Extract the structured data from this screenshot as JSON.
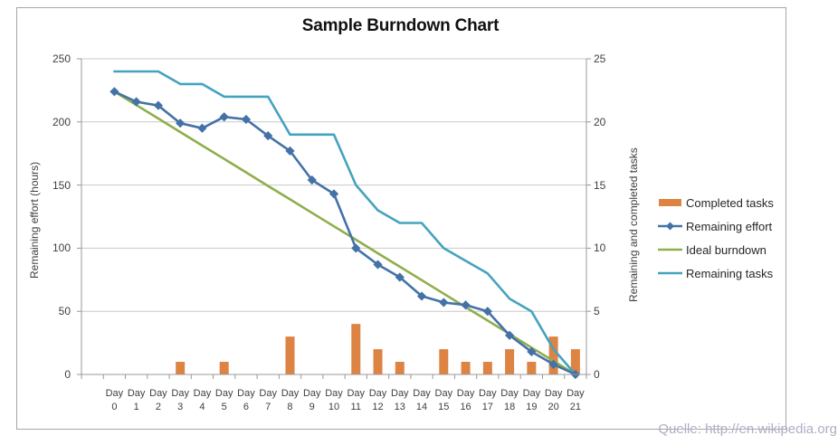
{
  "chart": {
    "title": "Sample Burndown Chart",
    "source_note": "Quelle: http://en.wikipedia.org"
  },
  "chart_data": {
    "type": "combo-bar-line",
    "title": "Sample Burndown Chart",
    "categories": [
      "Day 0",
      "Day 1",
      "Day 2",
      "Day 3",
      "Day 4",
      "Day 5",
      "Day 6",
      "Day 7",
      "Day 8",
      "Day 9",
      "Day 10",
      "Day 11",
      "Day 12",
      "Day 13",
      "Day 14",
      "Day 15",
      "Day 16",
      "Day 17",
      "Day 18",
      "Day 19",
      "Day 20",
      "Day 21"
    ],
    "series": [
      {
        "name": "Completed tasks",
        "type": "bar",
        "axis": "right",
        "color": "#dd8343",
        "values": [
          0,
          0,
          0,
          1,
          0,
          1,
          0,
          0,
          3,
          0,
          0,
          4,
          2,
          1,
          0,
          2,
          1,
          1,
          2,
          1,
          3,
          2
        ]
      },
      {
        "name": "Remaining effort",
        "type": "line",
        "marker": "diamond",
        "axis": "left",
        "color": "#4472a8",
        "values": [
          224,
          216,
          213,
          199,
          195,
          204,
          202,
          189,
          177,
          154,
          143,
          100,
          87,
          77,
          62,
          57,
          55,
          50,
          31,
          18,
          8,
          0
        ]
      },
      {
        "name": "Ideal burndown",
        "type": "line",
        "axis": "left",
        "color": "#8fae4c",
        "values": [
          224,
          213.3,
          202.7,
          192,
          181.3,
          170.7,
          160,
          149.3,
          138.7,
          128,
          117.3,
          106.7,
          96,
          85.3,
          74.7,
          64,
          53.3,
          42.7,
          32,
          21.3,
          10.7,
          0
        ]
      },
      {
        "name": "Remaining tasks",
        "type": "line",
        "axis": "right",
        "color": "#45a3be",
        "values": [
          24,
          24,
          24,
          23,
          23,
          22,
          22,
          22,
          19,
          19,
          19,
          15,
          13,
          12,
          12,
          10,
          9,
          8,
          6,
          5,
          2,
          0
        ]
      }
    ],
    "left_axis": {
      "label": "Remaining effort (hours)",
      "min": 0,
      "max": 250,
      "ticks": [
        250,
        200,
        150,
        100,
        50,
        0
      ]
    },
    "right_axis": {
      "label": "Remaining and completed tasks",
      "min": 0,
      "max": 25,
      "ticks": [
        25,
        20,
        15,
        10,
        5,
        0
      ]
    },
    "legend_position": "right",
    "grid": "horizontal",
    "colors": {
      "grid": "#c9c9c9",
      "axis": "#989898",
      "tick_text": "#404040",
      "title_text": "#111111",
      "source_text": "#aeaec6",
      "frame_border": "#a6a6a6"
    }
  }
}
